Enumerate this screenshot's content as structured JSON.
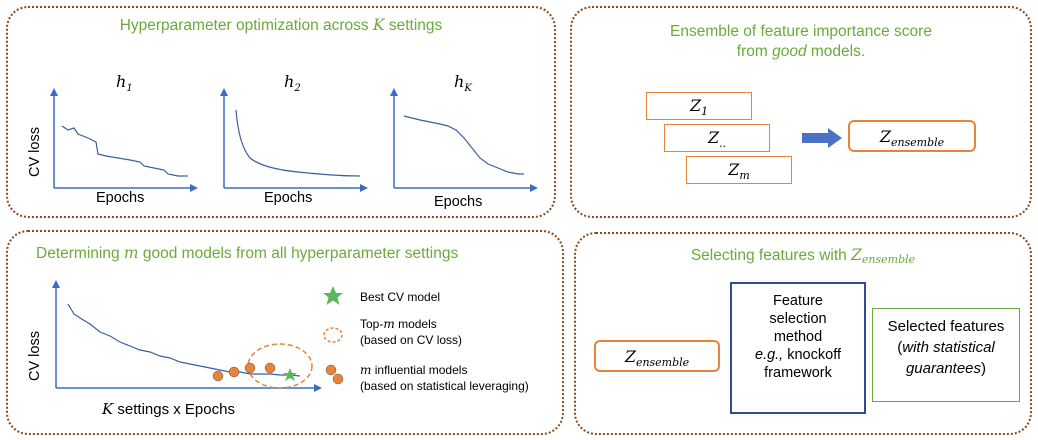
{
  "panel_a": {
    "title_pre": "Hyperparameter optimization across ",
    "title_var": "K",
    "title_post": " settings",
    "ylabel": "CV loss",
    "charts": [
      {
        "label_base": "h",
        "label_sub": "1",
        "xlabel": "Epochs"
      },
      {
        "label_base": "h",
        "label_sub": "2",
        "xlabel": "Epochs"
      },
      {
        "label_base": "h",
        "label_sub": "K",
        "xlabel": "Epochs"
      }
    ]
  },
  "panel_b": {
    "title_line1": "Ensemble of feature importance score",
    "title_line2_pre": "from ",
    "title_line2_em": "good",
    "title_line2_post": " models.",
    "z_boxes": [
      {
        "base": "Z",
        "sub": "1"
      },
      {
        "base": "Z",
        "sub": ".."
      },
      {
        "base": "Z",
        "sub": "m"
      }
    ],
    "ensemble": {
      "base": "Z",
      "sub": "ensemble"
    }
  },
  "panel_c": {
    "title_pre": "Determining ",
    "title_var": "m",
    "title_post": " good models from all hyperparameter settings",
    "ylabel": "CV loss",
    "xlabel_var": "K",
    "xlabel_post": " settings x Epochs",
    "legend": {
      "best": "Best CV model",
      "topm_line1_pre": "Top-",
      "topm_line1_var": "m",
      "topm_line1_post": " models",
      "topm_line2": "(based on CV loss)",
      "infl_line1_var": "m",
      "infl_line1_post": " influential models",
      "infl_line2": "(based on statistical leveraging)"
    },
    "colors": {
      "star": "#5cb85c",
      "dots": "#e8833a",
      "curve": "#3b5f9e"
    }
  },
  "panel_d": {
    "title_pre": "Selecting features with ",
    "title_base": "Z",
    "title_sub": "ensemble",
    "input": {
      "base": "Z",
      "sub": "ensemble"
    },
    "method": [
      "Feature",
      "selection",
      "method"
    ],
    "method_eg": "e.g.,",
    "method_eg_post": " knockoff",
    "method_last": "framework",
    "selected_line1": "Selected features",
    "selected_line2_pre": "(",
    "selected_line2_em": "with statistical",
    "selected_line3_em": "guarantees",
    "selected_line3_post": ")"
  }
}
